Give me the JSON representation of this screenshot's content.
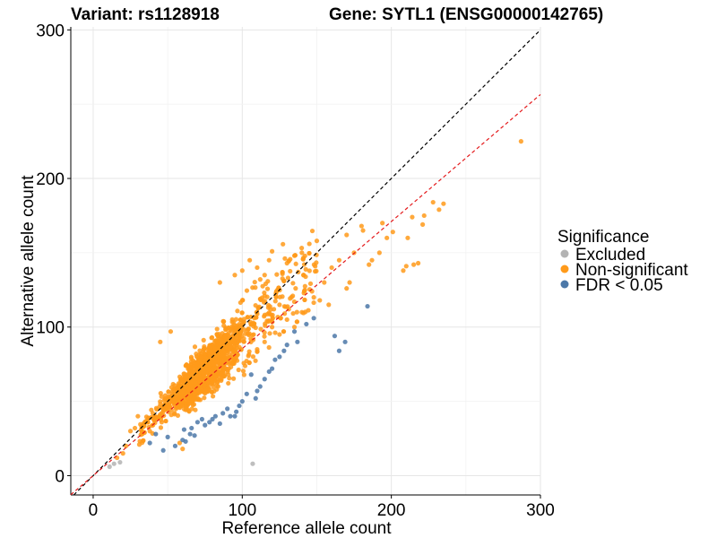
{
  "chart_data": {
    "type": "scatter",
    "title_left": "Variant: rs1128918",
    "title_right": "Gene: SYTL1 (ENSG00000142765)",
    "xlabel": "Reference allele count",
    "ylabel": "Alternative allele count",
    "xlim": [
      -15,
      300
    ],
    "ylim": [
      -13,
      302
    ],
    "xticks": [
      0,
      100,
      200,
      300
    ],
    "yticks": [
      0,
      100,
      200,
      300
    ],
    "grid": true,
    "reference_lines": [
      {
        "name": "y = x",
        "slope": 1.0,
        "intercept": 0,
        "color": "#000000",
        "dash": true
      },
      {
        "name": "fitted",
        "slope": 0.855,
        "intercept": 0,
        "color": "#e41a1c",
        "dash": true
      }
    ],
    "legend": {
      "title": "Significance",
      "position": "right",
      "entries": [
        {
          "label": "Excluded",
          "color": "#b3b3b3"
        },
        {
          "label": "Non-significant",
          "color": "#ff9a1a"
        },
        {
          "label": "FDR < 0.05",
          "color": "#4c78a8"
        }
      ]
    },
    "series": [
      {
        "name": "Excluded",
        "color": "#b3b3b3",
        "points": [
          [
            107,
            8
          ],
          [
            11,
            6
          ],
          [
            18,
            9
          ],
          [
            14,
            8
          ]
        ]
      },
      {
        "name": "Non-significant",
        "color": "#ff9a1a",
        "generated_cloud": {
          "count": 1500,
          "x_range": [
            10,
            160
          ],
          "y_ratio": 0.95,
          "spread": 0.18
        },
        "points": [
          [
            287,
            225
          ],
          [
            235,
            183
          ],
          [
            228,
            184
          ],
          [
            222,
            175
          ],
          [
            232,
            179
          ],
          [
            214,
            174
          ],
          [
            221,
            169
          ],
          [
            211,
            160
          ],
          [
            201,
            164
          ],
          [
            197,
            160
          ],
          [
            180,
            168
          ],
          [
            181,
            165
          ],
          [
            170,
            162
          ],
          [
            194,
            170
          ],
          [
            218,
            143
          ],
          [
            215,
            142
          ],
          [
            210,
            141
          ],
          [
            208,
            138
          ],
          [
            187,
            145
          ],
          [
            185,
            142
          ],
          [
            192,
            150
          ],
          [
            175,
            150
          ],
          [
            165,
            145
          ],
          [
            150,
            158
          ],
          [
            145,
            156
          ],
          [
            140,
            150
          ],
          [
            135,
            148
          ],
          [
            130,
            143
          ],
          [
            120,
            151
          ],
          [
            118,
            145
          ],
          [
            105,
            145
          ],
          [
            100,
            138
          ],
          [
            95,
            135
          ],
          [
            85,
            130
          ],
          [
            110,
            140
          ],
          [
            115,
            135
          ],
          [
            160,
            140
          ],
          [
            155,
            130
          ],
          [
            142,
            125
          ],
          [
            148,
            120
          ],
          [
            152,
            118
          ],
          [
            158,
            115
          ],
          [
            170,
            126
          ],
          [
            172,
            130
          ],
          [
            125,
            115
          ],
          [
            120,
            100
          ],
          [
            130,
            105
          ],
          [
            140,
            110
          ],
          [
            135,
            100
          ],
          [
            115,
            90
          ],
          [
            110,
            85
          ],
          [
            125,
            95
          ],
          [
            60,
            18
          ],
          [
            58,
            22
          ],
          [
            38,
            30
          ],
          [
            40,
            42
          ],
          [
            45,
            90
          ],
          [
            52,
            97
          ],
          [
            25,
            30
          ],
          [
            30,
            40
          ],
          [
            22,
            20
          ],
          [
            28,
            32
          ],
          [
            33,
            28
          ],
          [
            20,
            15
          ],
          [
            16,
            12
          ]
        ]
      },
      {
        "name": "FDR < 0.05",
        "color": "#4c78a8",
        "points": [
          [
            184,
            114
          ],
          [
            169,
            90
          ],
          [
            165,
            84
          ],
          [
            162,
            94
          ],
          [
            148,
            106
          ],
          [
            143,
            102
          ],
          [
            135,
            97
          ],
          [
            137,
            90
          ],
          [
            130,
            88
          ],
          [
            128,
            84
          ],
          [
            125,
            80
          ],
          [
            122,
            78
          ],
          [
            120,
            72
          ],
          [
            118,
            70
          ],
          [
            115,
            65
          ],
          [
            112,
            60
          ],
          [
            110,
            57
          ],
          [
            109,
            52
          ],
          [
            106,
            68
          ],
          [
            103,
            55
          ],
          [
            98,
            47
          ],
          [
            96,
            43
          ],
          [
            95,
            40
          ],
          [
            90,
            45
          ],
          [
            87,
            42
          ],
          [
            82,
            40
          ],
          [
            80,
            38
          ],
          [
            78,
            36
          ],
          [
            75,
            34
          ],
          [
            73,
            38
          ],
          [
            70,
            36
          ],
          [
            68,
            27
          ],
          [
            66,
            32
          ],
          [
            62,
            23
          ],
          [
            61,
            31
          ],
          [
            55,
            20
          ],
          [
            50,
            26
          ],
          [
            47,
            17
          ],
          [
            42,
            28
          ],
          [
            38,
            22
          ],
          [
            100,
            50
          ],
          [
            92,
            40
          ],
          [
            85,
            35
          ],
          [
            65,
            28
          ],
          [
            60,
            24
          ]
        ]
      }
    ]
  }
}
